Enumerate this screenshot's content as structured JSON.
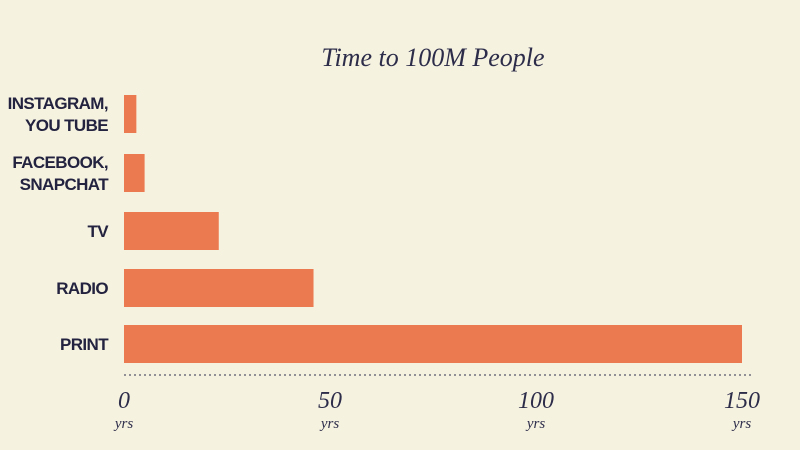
{
  "chart_data": {
    "type": "hbar",
    "title": "Time to 100M People",
    "categories": [
      [
        "INSTAGRAM,",
        "YOU TUBE"
      ],
      [
        "FACEBOOK,",
        "SNAPCHAT"
      ],
      [
        "TV"
      ],
      [
        "RADIO"
      ],
      [
        "PRINT"
      ]
    ],
    "values": [
      3,
      5,
      23,
      46,
      150
    ],
    "color": "#ec7a50",
    "xlim": [
      0,
      150
    ],
    "xticks": [
      0,
      50,
      100,
      150
    ],
    "x_unit": "yrs"
  }
}
